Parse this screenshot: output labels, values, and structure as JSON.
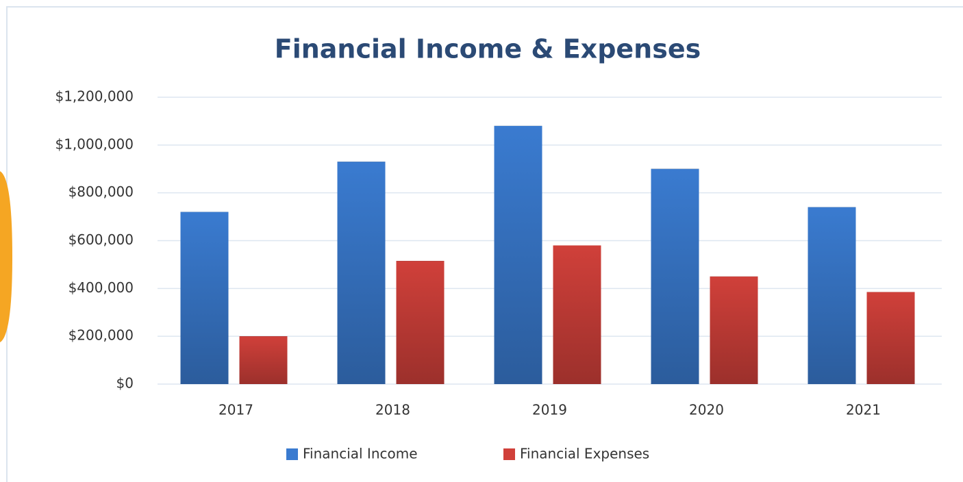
{
  "chart_data": {
    "type": "bar",
    "title": "Financial Income & Expenses",
    "categories": [
      "2017",
      "2018",
      "2019",
      "2020",
      "2021"
    ],
    "series": [
      {
        "name": "Financial Income",
        "color": "#3a7bd0",
        "values": [
          720000,
          930000,
          1080000,
          900000,
          740000
        ]
      },
      {
        "name": "Financial Expenses",
        "color": "#d0403a",
        "values": [
          200000,
          515000,
          580000,
          450000,
          385000
        ]
      }
    ],
    "ylim": [
      0,
      1200000
    ],
    "yticks": [
      {
        "value": 0,
        "label": "$0"
      },
      {
        "value": 200000,
        "label": "$200,000"
      },
      {
        "value": 400000,
        "label": "$400,000"
      },
      {
        "value": 600000,
        "label": "$600,000"
      },
      {
        "value": 800000,
        "label": "$800,000"
      },
      {
        "value": 1000000,
        "label": "$1,000,000"
      },
      {
        "value": 1200000,
        "label": "$1,200,000"
      }
    ],
    "grid": true,
    "legend": "bottom"
  }
}
